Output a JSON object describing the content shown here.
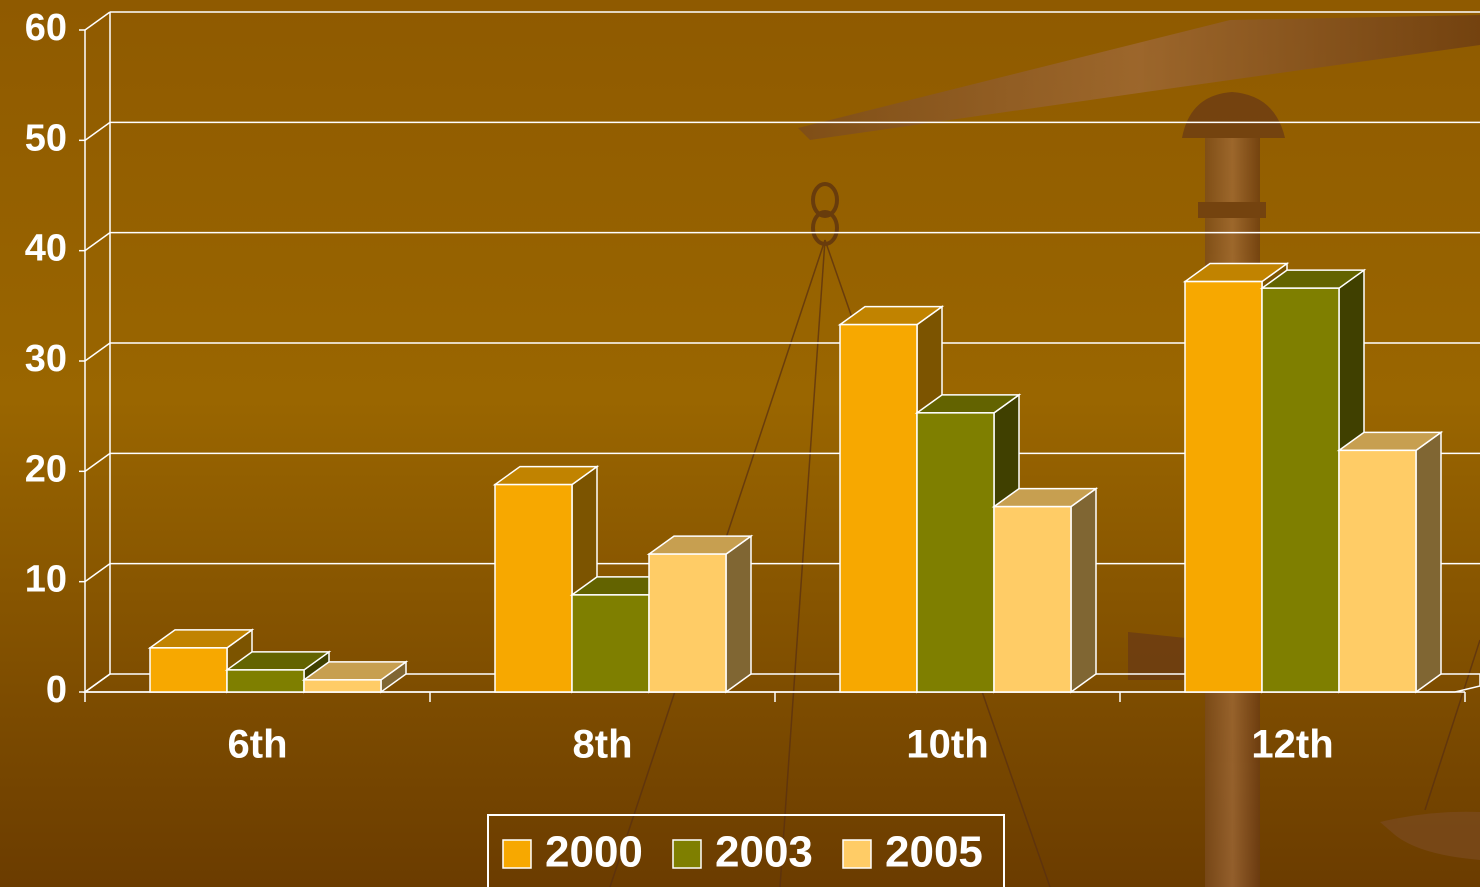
{
  "chart_data": {
    "type": "bar3d",
    "categories": [
      "6th",
      "8th",
      "10th",
      "12th"
    ],
    "series": [
      {
        "name": "2000",
        "color": "#f7a800",
        "values": [
          4.0,
          18.8,
          33.3,
          37.2
        ]
      },
      {
        "name": "2003",
        "color": "#7f7f00",
        "values": [
          2.0,
          8.8,
          25.3,
          36.6
        ]
      },
      {
        "name": "2005",
        "color": "#ffcc66",
        "values": [
          1.1,
          12.5,
          16.8,
          21.9
        ]
      }
    ],
    "ylim": [
      0,
      60
    ],
    "yticks": [
      0,
      10,
      20,
      30,
      40,
      50,
      60
    ],
    "grid": true,
    "legend": "bottom"
  }
}
